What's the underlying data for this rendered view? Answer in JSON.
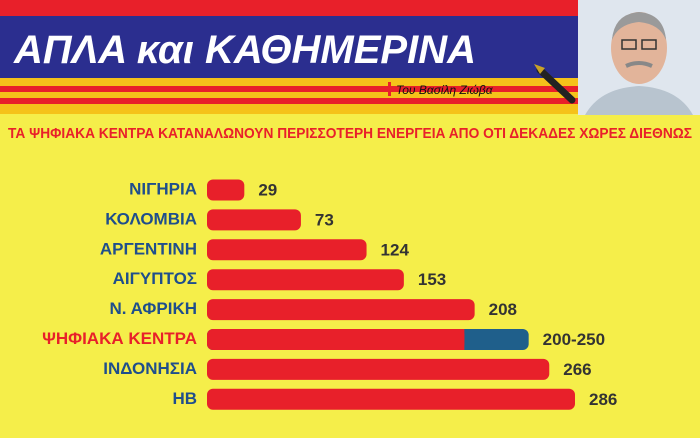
{
  "header": {
    "title": "ΑΠΛΑ και ΚΑΘΗΜΕΡΙΝΑ",
    "byline": "Του Βασίλη Ζιώβα"
  },
  "chart_data": {
    "type": "bar",
    "orientation": "horizontal",
    "title": "ΤΑ ΨΗΦΙΑΚΑ ΚΕΝΤΡΑ ΚΑΤΑΝΑΛΩΝΟΥΝ ΠΕΡΙΣΣΟΤΕΡΗ ΕΝΕΡΓΕΙΑ ΑΠΟ ΟΤΙ ΔΕΚΑΔΕΣ ΧΩΡΕΣ ΔΙΕΘΝΩΣ",
    "categories": [
      "ΝΙΓΗΡΙΑ",
      "ΚΟΛΟΜΒΙΑ",
      "ΑΡΓΕΝΤΙΝΗ",
      "ΑΙΓΥΠΤΟΣ",
      "Ν. ΑΦΡΙΚΗ",
      "ΨΗΦΙΑΚΑ ΚΕΝΤΡΑ",
      "ΙΝΔΟΝΗΣΙΑ",
      "ΗΒ"
    ],
    "values": [
      29,
      73,
      124,
      153,
      208,
      200,
      266,
      286
    ],
    "value_labels": [
      "29",
      "73",
      "124",
      "153",
      "208",
      "200-250",
      "266",
      "286"
    ],
    "color": "#e8202a",
    "highlight": {
      "index": 5,
      "high": 250,
      "color": "#1f5f8b",
      "label_color": "#e8202a"
    }
  }
}
